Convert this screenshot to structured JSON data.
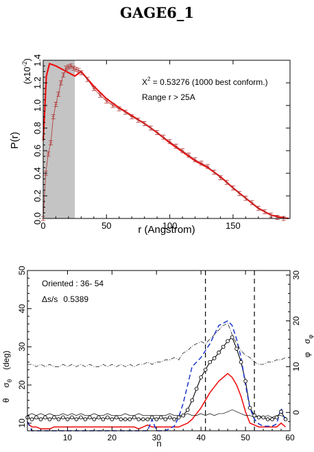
{
  "title": "GAGE6_1",
  "chart_data": [
    {
      "type": "line",
      "ylabel": "P(r)",
      "y_exponent_label": "(x10",
      "y_exponent_power": "-2",
      "y_exponent_close": ")",
      "xlabel": "r (Angstrom)",
      "xlim": [
        0,
        195
      ],
      "ylim": [
        0,
        1.4
      ],
      "xticks": [
        0,
        50,
        100,
        150
      ],
      "yticks": [
        0.0,
        0.2,
        0.4,
        0.6,
        0.8,
        1.0,
        1.2,
        1.4
      ],
      "ytick_labels": [
        "0.0",
        "0.2",
        "0.4",
        "0.6",
        "0.8",
        "1.0",
        "1.2",
        "1.4"
      ],
      "shaded_region": [
        0,
        25
      ],
      "annotations": {
        "chi_label": "X",
        "chi_power": "2",
        "chi_value": " = 0.53276 (1000 best conform.)",
        "range": "Range r >  25A"
      },
      "series": [
        {
          "role": "fit",
          "color": "#ee1111",
          "x": [
            0,
            1,
            2.5,
            5,
            10,
            15,
            20,
            25,
            30,
            40,
            50,
            60,
            70,
            80,
            90,
            100,
            110,
            120,
            130,
            140,
            150,
            160,
            170,
            180,
            190,
            194
          ],
          "y": [
            0.69,
            0.9,
            1.26,
            1.37,
            1.35,
            1.32,
            1.29,
            1.26,
            1.3,
            1.17,
            1.06,
            0.98,
            0.91,
            0.84,
            0.76,
            0.67,
            0.59,
            0.51,
            0.45,
            0.37,
            0.27,
            0.18,
            0.09,
            0.03,
            0.005,
            0.0
          ]
        },
        {
          "role": "data",
          "color": "#b03030",
          "x": [
            0,
            2,
            4,
            6,
            8,
            10,
            12,
            14,
            16,
            18,
            20,
            22,
            24,
            26,
            28,
            30,
            35,
            40,
            45,
            50,
            55,
            60,
            65,
            70,
            75,
            80,
            85,
            90,
            95,
            100,
            105,
            110,
            115,
            120,
            125,
            130,
            135,
            140,
            145,
            150,
            155,
            160,
            165,
            170,
            175,
            180,
            185,
            190
          ],
          "y": [
            0.0,
            0.4,
            0.57,
            0.67,
            0.9,
            1.01,
            1.1,
            1.2,
            1.27,
            1.33,
            1.34,
            1.35,
            1.33,
            1.32,
            1.31,
            1.29,
            1.23,
            1.15,
            1.09,
            1.04,
            1.0,
            0.97,
            0.94,
            0.9,
            0.87,
            0.84,
            0.8,
            0.76,
            0.72,
            0.68,
            0.64,
            0.6,
            0.56,
            0.52,
            0.49,
            0.46,
            0.41,
            0.36,
            0.32,
            0.27,
            0.22,
            0.18,
            0.14,
            0.09,
            0.06,
            0.03,
            0.01,
            0.0
          ]
        }
      ]
    },
    {
      "type": "line",
      "xlabel": "n",
      "ylabel_left_1": "θ",
      "ylabel_left_2": "σ",
      "ylabel_left_2_sub": "θ",
      "ylabel_left_3": "(deg)",
      "ylabel_right_1": "φ",
      "ylabel_right_2": "σ",
      "ylabel_right_2_sub": "φ",
      "xlim": [
        1,
        60
      ],
      "ylim": [
        8,
        50
      ],
      "y2lim": [
        -4,
        31
      ],
      "xticks": [
        10,
        20,
        30,
        40,
        50,
        60
      ],
      "yticks": [
        10,
        20,
        30,
        40,
        50
      ],
      "y2ticks": [
        0,
        10,
        20,
        30
      ],
      "vlines": [
        41,
        52
      ],
      "annotations": {
        "oriented": "Oriented :  36- 54",
        "ds_label": "Δs/s",
        "ds_value": "0.5389"
      },
      "series": [
        {
          "role": "theta-circles",
          "color": "#000000",
          "x": [
            1,
            2,
            3,
            4,
            5,
            6,
            7,
            8,
            9,
            10,
            11,
            12,
            13,
            14,
            15,
            16,
            17,
            18,
            19,
            20,
            21,
            22,
            23,
            24,
            25,
            26,
            27,
            28,
            29,
            30,
            31,
            32,
            33,
            34,
            35,
            36,
            37,
            38,
            39,
            40,
            41,
            42,
            43,
            44,
            45,
            46,
            47,
            48,
            49,
            50,
            51,
            52,
            53,
            54,
            55,
            56,
            57,
            58,
            59
          ],
          "y": [
            11.5,
            11,
            11.5,
            11,
            11.5,
            11,
            11.5,
            11,
            11.5,
            11,
            11.5,
            11,
            11.5,
            11,
            11.5,
            11,
            11.5,
            11,
            11.5,
            11,
            11.5,
            11,
            11,
            11,
            11.5,
            11,
            11,
            11,
            11.5,
            11,
            11.5,
            11,
            11.5,
            11,
            11.5,
            12,
            13.5,
            16,
            19,
            22,
            24,
            26,
            27,
            28.5,
            30,
            31.5,
            32.5,
            29.5,
            26,
            21,
            14,
            12,
            11.5,
            11.5,
            11,
            11,
            11.5,
            13,
            11
          ]
        },
        {
          "role": "theta-red",
          "color": "#ee1111",
          "x": [
            1,
            2,
            3,
            4,
            5,
            6,
            7,
            8,
            9,
            10,
            11,
            12,
            13,
            14,
            15,
            16,
            17,
            18,
            19,
            20,
            21,
            22,
            23,
            24,
            25,
            26,
            27,
            28,
            29,
            30,
            31,
            32,
            33,
            34,
            35,
            36,
            37,
            38,
            39,
            40,
            41,
            42,
            43,
            44,
            45,
            46,
            47,
            48,
            49,
            50,
            51,
            52,
            53,
            54,
            55,
            56,
            57,
            58,
            59
          ],
          "y": [
            10,
            9,
            9,
            8.5,
            8.5,
            8.5,
            9,
            9,
            9,
            9,
            9,
            9,
            9,
            9,
            9,
            9,
            9,
            9,
            9,
            9,
            9,
            9,
            9,
            9,
            9,
            8.5,
            9,
            9.5,
            9,
            9,
            9,
            9,
            9,
            9,
            9,
            9.5,
            10,
            11,
            12.5,
            14,
            16,
            18,
            19.5,
            21,
            22,
            23,
            22,
            20,
            17,
            13,
            10,
            9.5,
            9,
            9,
            9,
            9,
            9,
            10,
            9
          ]
        },
        {
          "role": "theta-thin",
          "color": "#000000",
          "x": [
            1,
            2,
            3,
            4,
            5,
            6,
            7,
            8,
            9,
            10,
            11,
            12,
            13,
            14,
            15,
            16,
            17,
            18,
            19,
            20,
            21,
            22,
            23,
            24,
            25,
            26,
            27,
            28,
            29,
            30,
            31,
            32,
            33,
            34,
            35,
            36,
            37,
            38,
            39,
            40,
            41,
            42,
            43,
            44,
            45,
            46,
            47,
            48,
            49,
            50,
            51,
            52,
            53,
            54,
            55,
            56,
            57,
            58,
            59
          ],
          "y": [
            12,
            12.5,
            12,
            12.5,
            12,
            12.5,
            12,
            12,
            12.5,
            12,
            12.5,
            12,
            12.5,
            12,
            12,
            12.5,
            12,
            12,
            12.5,
            12,
            12,
            12,
            12.5,
            12,
            12,
            12.5,
            12,
            12,
            12,
            12,
            12,
            12,
            12.5,
            12,
            12,
            12,
            12.5,
            12,
            12,
            12.5,
            12,
            12.5,
            12,
            12.5,
            12.5,
            13,
            13.5,
            13,
            12.5,
            12,
            12,
            11.5,
            12,
            11.5,
            12,
            11.5,
            12,
            12,
            11.5
          ]
        },
        {
          "role": "phi-blue-dashed",
          "color": "#1a33cc",
          "x": [
            1,
            2,
            3,
            4,
            5,
            6,
            7,
            8,
            9,
            10,
            11,
            12,
            13,
            14,
            15,
            16,
            17,
            18,
            19,
            20,
            21,
            22,
            23,
            24,
            25,
            26,
            27,
            28,
            29,
            30,
            31,
            32,
            33,
            34,
            35,
            36,
            37,
            38,
            39,
            40,
            41,
            42,
            43,
            44,
            45,
            46,
            47,
            48,
            49,
            50,
            51,
            52,
            53,
            54,
            55,
            56,
            57,
            58,
            59
          ],
          "y": [
            -2,
            -5.5,
            -5,
            -6,
            -5.5,
            -6,
            -5.5,
            -6,
            -5.5,
            -6,
            -5.5,
            -6,
            -5.5,
            -6,
            -5.5,
            -6,
            -5.5,
            -6,
            -5.5,
            -6,
            -5.5,
            -6,
            -5.5,
            -5,
            -5.5,
            -5,
            -5.5,
            -4,
            -1.5,
            -4,
            -4,
            -4,
            -3.5,
            -3,
            -1,
            2,
            6,
            10,
            11,
            12,
            13.5,
            15,
            17,
            19,
            19.5,
            20,
            19,
            16,
            12,
            6,
            1,
            -1.5,
            -2.5,
            -3,
            -3,
            -3,
            -2.5,
            1,
            -2
          ]
        },
        {
          "role": "phi-dashdot",
          "color": "#000000",
          "x": [
            1,
            2,
            3,
            4,
            5,
            6,
            7,
            8,
            9,
            10,
            11,
            12,
            13,
            14,
            15,
            16,
            17,
            18,
            19,
            20,
            21,
            22,
            23,
            24,
            25,
            26,
            27,
            28,
            29,
            30,
            31,
            32,
            33,
            34,
            35,
            36,
            37,
            38,
            39,
            40,
            41,
            42,
            43,
            44,
            45,
            46,
            47,
            48,
            49,
            50,
            51,
            52,
            53,
            54,
            55,
            56,
            57,
            58,
            59
          ],
          "y": [
            10.5,
            10.5,
            10,
            10.5,
            10,
            10.5,
            10,
            10,
            10.5,
            10,
            10.5,
            10,
            10.5,
            10,
            10.5,
            10,
            10,
            10.5,
            10,
            10.5,
            10,
            10.5,
            10,
            10.5,
            10,
            10.5,
            10.5,
            11,
            10.5,
            11,
            11,
            11.5,
            11.5,
            12,
            11.5,
            13,
            13.5,
            14.5,
            15,
            15.5,
            15,
            16,
            17,
            18,
            19,
            19.5,
            17,
            15,
            13.5,
            12.5,
            12,
            11,
            10.5,
            10.5,
            11,
            11,
            11.5,
            11.5,
            12
          ]
        }
      ]
    }
  ]
}
